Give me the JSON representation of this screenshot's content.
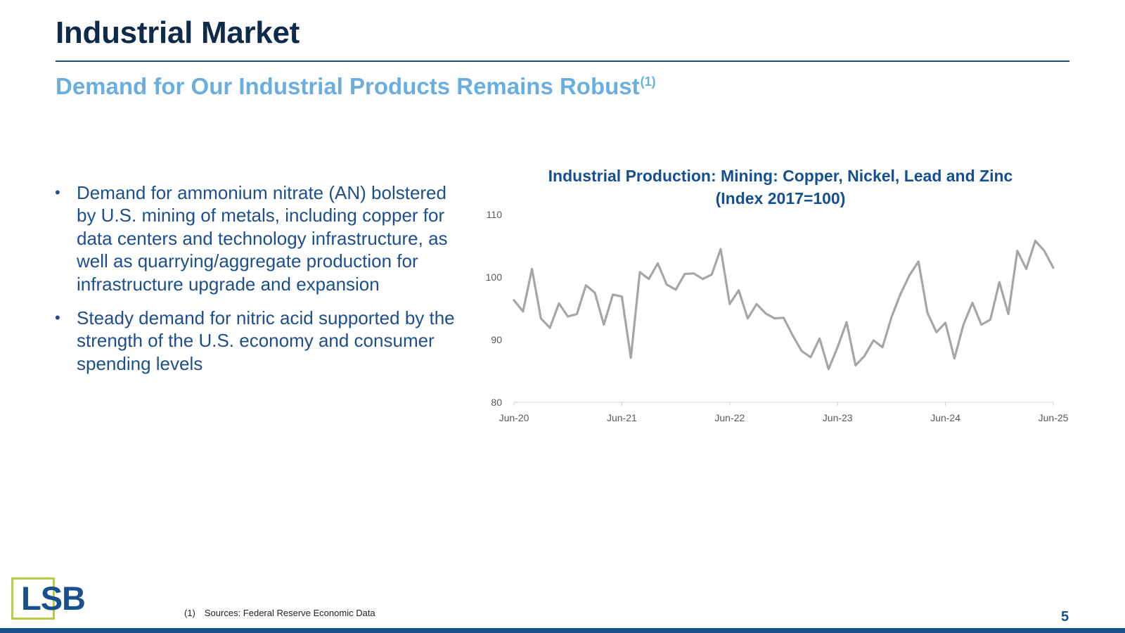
{
  "header": {
    "title": "Industrial Market",
    "subtitle": "Demand for Our Industrial Products Remains Robust",
    "subtitle_footnote": "(1)"
  },
  "bullets": [
    {
      "text": "Demand for ammonium nitrate (AN) bolstered by U.S. mining of metals, including copper for data centers and technology infrastructure, as well as quarrying/aggregate production for infrastructure upgrade and expansion"
    },
    {
      "text": "Steady demand for nitric acid supported by the strength of the U.S. economy and consumer spending levels"
    }
  ],
  "bullet_symbol": "•",
  "chart_data": {
    "type": "line",
    "title": "Industrial Production: Mining: Copper, Nickel, Lead and Zinc",
    "title_line2": "(Index 2017=100)",
    "xlabel": "",
    "ylabel": "",
    "ylim": [
      80,
      110
    ],
    "yticks": [
      "80",
      "90",
      "100",
      "110"
    ],
    "x_tick_labels": [
      "Jun-20",
      "Jun-21",
      "Jun-22",
      "Jun-23",
      "Jun-24",
      "Jun-25"
    ],
    "x": [
      "Jun-20",
      "Jul-20",
      "Aug-20",
      "Sep-20",
      "Oct-20",
      "Nov-20",
      "Dec-20",
      "Jan-21",
      "Feb-21",
      "Mar-21",
      "Apr-21",
      "May-21",
      "Jun-21",
      "Jul-21",
      "Aug-21",
      "Sep-21",
      "Oct-21",
      "Nov-21",
      "Dec-21",
      "Jan-22",
      "Feb-22",
      "Mar-22",
      "Apr-22",
      "May-22",
      "Jun-22",
      "Jul-22",
      "Aug-22",
      "Sep-22",
      "Oct-22",
      "Nov-22",
      "Dec-22",
      "Jan-23",
      "Feb-23",
      "Mar-23",
      "Apr-23",
      "May-23",
      "Jun-23",
      "Jul-23",
      "Aug-23",
      "Sep-23",
      "Oct-23",
      "Nov-23",
      "Dec-23",
      "Jan-24",
      "Feb-24",
      "Mar-24",
      "Apr-24",
      "May-24",
      "Jun-24",
      "Jul-24",
      "Aug-24",
      "Sep-24",
      "Oct-24",
      "Nov-24",
      "Dec-24",
      "Jan-25",
      "Feb-25",
      "Mar-25",
      "Apr-25",
      "May-25",
      "Jun-25"
    ],
    "series": [
      {
        "name": "Industrial Production: Mining: Copper, Nickel, Lead and Zinc",
        "color": "#a6a6a6",
        "values": [
          96.3,
          94.5,
          101.3,
          93.4,
          91.9,
          95.8,
          93.7,
          94.1,
          98.7,
          97.5,
          92.4,
          97.2,
          96.9,
          87.1,
          100.8,
          99.7,
          102.2,
          98.8,
          98.0,
          100.5,
          100.6,
          99.7,
          100.4,
          104.5,
          95.7,
          97.9,
          93.4,
          95.7,
          94.2,
          93.4,
          93.5,
          90.7,
          88.2,
          87.2,
          90.2,
          85.3,
          88.8,
          92.8,
          85.9,
          87.4,
          89.9,
          88.8,
          93.6,
          97.3,
          100.3,
          102.5,
          94.3,
          91.2,
          92.7,
          87.0,
          92.4,
          95.9,
          92.4,
          93.2,
          99.2,
          94.1,
          104.2,
          101.3,
          105.8,
          104.2,
          101.5
        ]
      }
    ]
  },
  "footnote": {
    "marker": "(1)",
    "text": "Sources: Federal Reserve Economic Data"
  },
  "logo": {
    "text": "LSB",
    "border_color": "#b4cd44",
    "text_color": "#1a4f8e"
  },
  "page_number": "5",
  "colors": {
    "title": "#0f2b4c",
    "subtitle": "#6aaee0",
    "bullets": "#1d4f8c",
    "chart_title": "#164f8f",
    "footer_bar": "#1a4f8e"
  }
}
